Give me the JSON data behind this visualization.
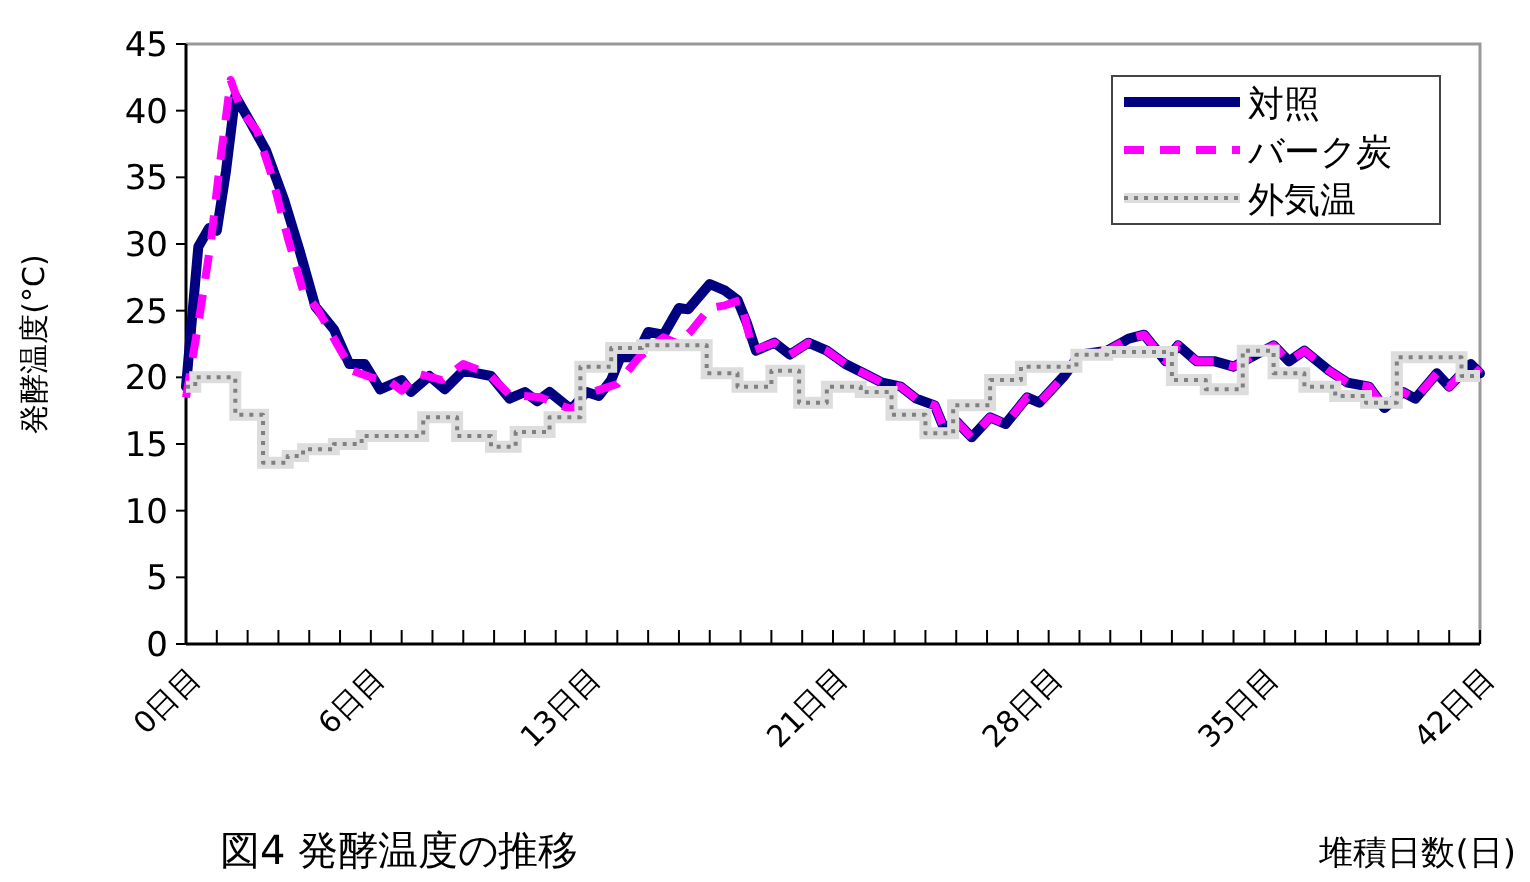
{
  "chart_data": {
    "type": "line",
    "title": "図4 発酵温度の推移",
    "xlabel": "堆積日数(日)",
    "ylabel": "発酵温度(°C)",
    "xlim": [
      0,
      42
    ],
    "ylim": [
      0,
      45
    ],
    "yticks": [
      0,
      5,
      10,
      15,
      20,
      25,
      30,
      35,
      40,
      45
    ],
    "xticks": [
      {
        "value": 0,
        "label": "0日目"
      },
      {
        "value": 1,
        "label": null
      },
      {
        "value": 2,
        "label": null
      },
      {
        "value": 3,
        "label": null
      },
      {
        "value": 4,
        "label": null
      },
      {
        "value": 5,
        "label": null
      },
      {
        "value": 6,
        "label": "6日目"
      },
      {
        "value": 7,
        "label": null
      },
      {
        "value": 8,
        "label": null
      },
      {
        "value": 9,
        "label": null
      },
      {
        "value": 10,
        "label": null
      },
      {
        "value": 11,
        "label": null
      },
      {
        "value": 12,
        "label": null
      },
      {
        "value": 13,
        "label": "13日目"
      },
      {
        "value": 14,
        "label": null
      },
      {
        "value": 15,
        "label": null
      },
      {
        "value": 16,
        "label": null
      },
      {
        "value": 17,
        "label": null
      },
      {
        "value": 18,
        "label": null
      },
      {
        "value": 19,
        "label": null
      },
      {
        "value": 20,
        "label": null
      },
      {
        "value": 21,
        "label": "21日目"
      },
      {
        "value": 22,
        "label": null
      },
      {
        "value": 23,
        "label": null
      },
      {
        "value": 24,
        "label": null
      },
      {
        "value": 25,
        "label": null
      },
      {
        "value": 26,
        "label": null
      },
      {
        "value": 27,
        "label": null
      },
      {
        "value": 28,
        "label": "28日目"
      },
      {
        "value": 29,
        "label": null
      },
      {
        "value": 30,
        "label": null
      },
      {
        "value": 31,
        "label": null
      },
      {
        "value": 32,
        "label": null
      },
      {
        "value": 33,
        "label": null
      },
      {
        "value": 34,
        "label": null
      },
      {
        "value": 35,
        "label": "35日目"
      },
      {
        "value": 36,
        "label": null
      },
      {
        "value": 37,
        "label": null
      },
      {
        "value": 38,
        "label": null
      },
      {
        "value": 39,
        "label": null
      },
      {
        "value": 40,
        "label": null
      },
      {
        "value": 41,
        "label": null
      },
      {
        "value": 42,
        "label": "42日目"
      }
    ],
    "legend": "top right",
    "grid": false,
    "marker": "none",
    "series": [
      {
        "name": "対照",
        "color": "#000080",
        "line_style": "solid",
        "x": [
          0,
          0.4,
          0.75,
          1.0,
          1.3,
          1.6,
          2.1,
          2.6,
          3.2,
          3.7,
          4.2,
          4.8,
          5.3,
          5.8,
          6.3,
          7.0,
          7.3,
          7.9,
          8.4,
          9.0,
          9.9,
          10.5,
          11.0,
          11.4,
          11.8,
          12.5,
          13.0,
          13.4,
          13.8,
          14.1,
          14.6,
          15.0,
          15.5,
          16.0,
          16.3,
          17.0,
          17.5,
          17.9,
          18.2,
          18.5,
          19.1,
          19.6,
          20.2,
          20.8,
          21.4,
          22.0,
          22.6,
          23.2,
          23.7,
          24.3,
          24.6,
          25.0,
          25.5,
          26.1,
          26.6,
          27.3,
          27.7,
          28.5,
          29.0,
          29.9,
          30.6,
          31.1,
          31.8,
          32.2,
          32.8,
          33.4,
          34.0,
          35.3,
          35.8,
          36.3,
          37.1,
          37.7,
          38.4,
          38.9,
          39.5,
          39.9,
          40.6,
          41.0,
          41.7,
          42
        ],
        "values": [
          19.3,
          29.8,
          31.2,
          31.0,
          35.5,
          41.1,
          39.1,
          37.0,
          33.2,
          29.4,
          25.3,
          23.6,
          21.0,
          21.0,
          19.1,
          19.8,
          18.9,
          20.1,
          19.1,
          20.5,
          20.1,
          18.4,
          18.9,
          18.2,
          18.9,
          17.6,
          18.9,
          18.6,
          19.8,
          21.5,
          21.5,
          23.4,
          23.2,
          25.2,
          25.1,
          27.0,
          26.5,
          25.8,
          24.1,
          22.0,
          22.6,
          21.7,
          22.6,
          22.0,
          21.0,
          20.3,
          19.6,
          19.3,
          18.4,
          17.9,
          16.2,
          16.7,
          15.5,
          17.0,
          16.5,
          18.5,
          18.1,
          20.1,
          21.7,
          22.0,
          22.9,
          23.2,
          21.2,
          22.4,
          21.2,
          21.2,
          20.8,
          22.4,
          21.2,
          22.0,
          20.5,
          19.6,
          19.3,
          17.7,
          18.9,
          18.4,
          20.3,
          19.3,
          21.0,
          20.3
        ]
      },
      {
        "name": "バーク炭",
        "color": "#ff00ff",
        "line_style": "dashed",
        "x": [
          0,
          0.4,
          0.8,
          1.1,
          1.45,
          1.8,
          2.3,
          2.8,
          3.3,
          3.8,
          4.3,
          4.9,
          5.4,
          6.0,
          6.6,
          7.0,
          7.5,
          8.3,
          9.0,
          9.8,
          10.5,
          11.5,
          12.5,
          13.2,
          14.0,
          14.7,
          15.5,
          16.0,
          16.4,
          17.0,
          17.5,
          18.0,
          18.4,
          19.1,
          19.6,
          20.2,
          20.8,
          21.4,
          22.0,
          22.6,
          23.2,
          23.7,
          24.3,
          24.6,
          25.0,
          25.5,
          26.1,
          26.6,
          27.3,
          27.7,
          28.5,
          29.0,
          29.9,
          30.6,
          31.1,
          31.8,
          32.2,
          32.8,
          33.4,
          34.0,
          35.3,
          35.8,
          36.3,
          37.1,
          37.7,
          38.4,
          38.9,
          39.5,
          39.9,
          40.6,
          41.0,
          41.7,
          42
        ],
        "values": [
          18.5,
          24.0,
          30.0,
          36.0,
          42.3,
          40.0,
          38.5,
          35.0,
          30.5,
          26.5,
          25.0,
          22.5,
          20.5,
          20.0,
          19.7,
          19.0,
          20.3,
          19.8,
          21.0,
          20.3,
          18.7,
          18.5,
          17.6,
          18.9,
          19.5,
          21.5,
          23.0,
          22.5,
          23.5,
          25.2,
          25.4,
          25.8,
          22.0,
          22.6,
          21.7,
          22.6,
          22.0,
          21.0,
          20.3,
          19.6,
          19.3,
          18.4,
          17.9,
          16.2,
          16.7,
          15.5,
          17.0,
          16.5,
          18.5,
          18.1,
          20.1,
          21.7,
          22.0,
          22.9,
          23.2,
          21.2,
          22.4,
          21.2,
          21.2,
          20.8,
          22.4,
          21.2,
          22.0,
          20.5,
          19.6,
          19.3,
          17.7,
          18.9,
          18.4,
          20.3,
          19.3,
          21.0,
          20.3
        ]
      },
      {
        "name": "外気温",
        "color": "#808080",
        "line_style": "dotted",
        "type": "step",
        "x": [
          0,
          0.3,
          1.6,
          2.5,
          3.3,
          3.8,
          4.8,
          5.7,
          7.7,
          8.8,
          9.9,
          10.7,
          11.8,
          12.8,
          13.8,
          14.8,
          16.9,
          17.9,
          19.0,
          19.9,
          20.8,
          21.9,
          22.9,
          24.0,
          24.9,
          26.1,
          27.1,
          28.9,
          29.9,
          32.0,
          33.1,
          34.3,
          35.3,
          36.3,
          37.3,
          38.3,
          39.3,
          41.4,
          42
        ],
        "values": [
          19.3,
          20.0,
          17.2,
          13.6,
          14.1,
          14.6,
          15.0,
          15.6,
          17.0,
          15.6,
          14.8,
          15.9,
          17.0,
          20.8,
          22.2,
          22.4,
          20.3,
          19.3,
          20.5,
          18.1,
          19.3,
          18.9,
          17.2,
          15.8,
          17.9,
          19.8,
          20.8,
          21.7,
          21.9,
          19.8,
          19.1,
          22.0,
          20.3,
          19.3,
          18.6,
          18.1,
          21.5,
          20.1,
          20.1
        ]
      }
    ]
  }
}
